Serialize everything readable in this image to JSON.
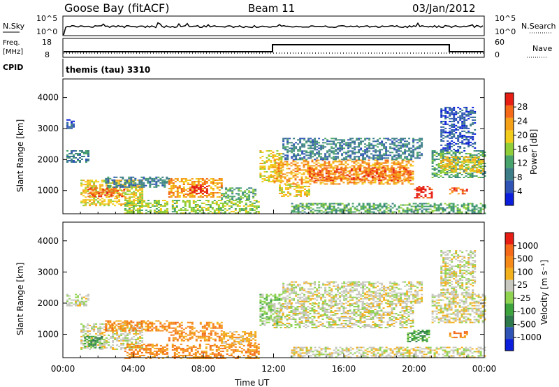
{
  "header": {
    "station": "Goose Bay (fitACF)",
    "beam": "Beam 11",
    "date": "03/Jan/2012"
  },
  "top_panels": {
    "nsky_label": "N.Sky",
    "nsky_ticks": [
      "10^5",
      "10^0"
    ],
    "nsearch_label": "N.Search",
    "nsearch_ticks": [
      "10^5",
      "10^0"
    ],
    "freq_label": "Freq.",
    "freq_unit": "[MHz]",
    "freq_ticks": [
      "18",
      "8"
    ],
    "nave_label": "Nave",
    "nave_ticks": [
      "60",
      "0"
    ],
    "cpid_label": "CPID",
    "cpid_text": "themis (tau) 3310"
  },
  "chart_data": [
    {
      "type": "heatmap",
      "name": "power",
      "ylabel": "Slant Range [km]",
      "xlabel": "",
      "xlim": [
        0,
        24
      ],
      "ylim": [
        250,
        4600
      ],
      "y_ticks": [
        1000,
        2000,
        3000,
        4000
      ],
      "x_tick_labels": [
        "00:00",
        "04:00",
        "08:00",
        "12:00",
        "16:00",
        "20:00",
        "00:00"
      ],
      "colorbar": {
        "label": "Power [dB]",
        "ticks": [
          "28",
          "24",
          "20",
          "16",
          "12",
          "8",
          "4"
        ],
        "colors": [
          "#0a1edc",
          "#2f54b6",
          "#3c7d88",
          "#49a36d",
          "#8fce38",
          "#f2cc1c",
          "#f5a019",
          "#f46a18",
          "#e61e14"
        ]
      },
      "echo_regions": [
        {
          "t0": 0.2,
          "t1": 1.4,
          "r0": 1900,
          "r1": 2300,
          "level": 2
        },
        {
          "t0": 0.2,
          "t1": 0.6,
          "r0": 3000,
          "r1": 3300,
          "level": 1
        },
        {
          "t0": 1.0,
          "t1": 4.5,
          "r0": 500,
          "r1": 1350,
          "level": 5
        },
        {
          "t0": 1.4,
          "t1": 3.5,
          "r0": 800,
          "r1": 1100,
          "level": 7
        },
        {
          "t0": 2.4,
          "t1": 6.0,
          "r0": 1100,
          "r1": 1450,
          "level": 2
        },
        {
          "t0": 3.5,
          "t1": 6.0,
          "r0": 250,
          "r1": 700,
          "level": 4
        },
        {
          "t0": 6.0,
          "t1": 9.0,
          "r0": 800,
          "r1": 1400,
          "level": 6
        },
        {
          "t0": 7.2,
          "t1": 8.2,
          "r0": 900,
          "r1": 1200,
          "level": 9
        },
        {
          "t0": 6.2,
          "t1": 11.2,
          "r0": 250,
          "r1": 700,
          "level": 4
        },
        {
          "t0": 9.0,
          "t1": 11.0,
          "r0": 700,
          "r1": 1100,
          "level": 3
        },
        {
          "t0": 11.2,
          "t1": 12.4,
          "r0": 1300,
          "r1": 2300,
          "level": 5
        },
        {
          "t0": 12.0,
          "t1": 20.0,
          "r0": 1200,
          "r1": 2000,
          "level": 6
        },
        {
          "t0": 12.3,
          "t1": 14.0,
          "r0": 800,
          "r1": 1200,
          "level": 5
        },
        {
          "t0": 14.0,
          "t1": 19.8,
          "r0": 1300,
          "r1": 1750,
          "level": 7
        },
        {
          "t0": 12.5,
          "t1": 20.5,
          "r0": 2000,
          "r1": 2700,
          "level": 2
        },
        {
          "t0": 20.0,
          "t1": 21.0,
          "r0": 750,
          "r1": 1150,
          "level": 8
        },
        {
          "t0": 21.0,
          "t1": 24.0,
          "r0": 1400,
          "r1": 2300,
          "level": 3
        },
        {
          "t0": 21.5,
          "t1": 24.0,
          "r0": 1600,
          "r1": 2100,
          "level": 5
        },
        {
          "t0": 21.5,
          "t1": 23.5,
          "r0": 2300,
          "r1": 3700,
          "level": 1
        },
        {
          "t0": 22.0,
          "t1": 23.0,
          "r0": 900,
          "r1": 1100,
          "level": 7
        },
        {
          "t0": 13.0,
          "t1": 24.0,
          "r0": 250,
          "r1": 600,
          "level": 3
        }
      ]
    },
    {
      "type": "heatmap",
      "name": "velocity",
      "ylabel": "Slant Range [km]",
      "xlabel": "Time UT",
      "xlim": [
        0,
        24
      ],
      "ylim": [
        250,
        4600
      ],
      "y_ticks": [
        1000,
        2000,
        3000,
        4000
      ],
      "x_tick_labels": [
        "00:00",
        "04:00",
        "08:00",
        "12:00",
        "16:00",
        "20:00",
        "00:00"
      ],
      "colorbar": {
        "label": "Velocity [m s⁻¹]",
        "ticks": [
          "1000",
          "500",
          "100",
          "25",
          "-25",
          "-100",
          "-500",
          "-1000"
        ],
        "colors": [
          "#0a1edc",
          "#2f54b6",
          "#2f7a4c",
          "#3da33d",
          "#8fd350",
          "#c8c8c0",
          "#f2b01c",
          "#f58a19",
          "#f46a18",
          "#e61e14"
        ]
      },
      "echo_regions": [
        {
          "t0": 0.2,
          "t1": 1.4,
          "r0": 1900,
          "r1": 2300,
          "level": 5
        },
        {
          "t0": 1.0,
          "t1": 4.5,
          "r0": 500,
          "r1": 1350,
          "level": 5
        },
        {
          "t0": 1.2,
          "t1": 2.2,
          "r0": 550,
          "r1": 950,
          "level": 3
        },
        {
          "t0": 2.4,
          "t1": 6.0,
          "r0": 1100,
          "r1": 1450,
          "level": 7
        },
        {
          "t0": 3.5,
          "t1": 6.0,
          "r0": 250,
          "r1": 700,
          "level": 7
        },
        {
          "t0": 6.0,
          "t1": 9.0,
          "r0": 800,
          "r1": 1400,
          "level": 7
        },
        {
          "t0": 6.2,
          "t1": 11.2,
          "r0": 250,
          "r1": 700,
          "level": 7
        },
        {
          "t0": 9.0,
          "t1": 11.0,
          "r0": 700,
          "r1": 1100,
          "level": 6
        },
        {
          "t0": 11.2,
          "t1": 12.4,
          "r0": 1300,
          "r1": 2300,
          "level": 4
        },
        {
          "t0": 12.0,
          "t1": 20.0,
          "r0": 1200,
          "r1": 2000,
          "level": 5
        },
        {
          "t0": 12.5,
          "t1": 20.5,
          "r0": 2000,
          "r1": 2700,
          "level": 5
        },
        {
          "t0": 19.6,
          "t1": 20.8,
          "r0": 750,
          "r1": 1150,
          "level": 3
        },
        {
          "t0": 21.0,
          "t1": 24.0,
          "r0": 1400,
          "r1": 2300,
          "level": 5
        },
        {
          "t0": 21.5,
          "t1": 23.5,
          "r0": 2300,
          "r1": 3700,
          "level": 5
        },
        {
          "t0": 22.0,
          "t1": 23.0,
          "r0": 900,
          "r1": 1100,
          "level": 7
        },
        {
          "t0": 13.0,
          "t1": 24.0,
          "r0": 250,
          "r1": 600,
          "level": 5
        }
      ]
    }
  ]
}
